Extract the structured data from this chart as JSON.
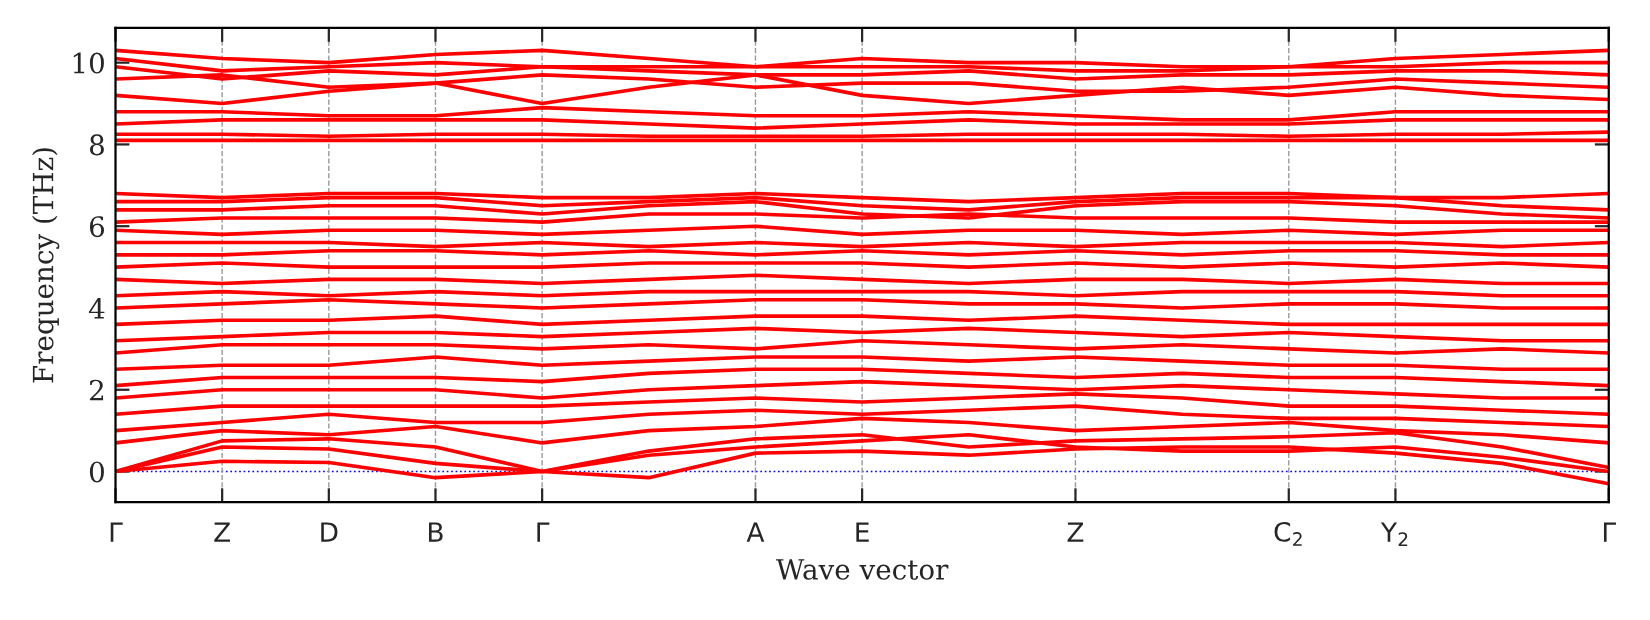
{
  "chart_data": {
    "type": "line",
    "xlabel": "Wave vector",
    "ylabel": "Frequency (THz)",
    "categories": [
      "Γ",
      "Z",
      "D",
      "B",
      "Γ",
      null,
      "A",
      "E",
      null,
      "Z",
      null,
      "C$_{2}$",
      "Y$_{2}$",
      null,
      "Γ"
    ],
    "ylim": [
      -0.75,
      10.85
    ],
    "yticks": [
      0,
      2,
      4,
      6,
      8,
      10
    ],
    "grid": "x",
    "legend": false,
    "line_style": "solid",
    "marker": "none",
    "ref_lines": [
      {
        "axis": "y",
        "value": 0,
        "color": "#0000ff",
        "line_style": "dotted"
      }
    ],
    "series": [
      {
        "color": "#ff0000",
        "values": [
          0,
          0.25,
          0.22,
          -0.15,
          0,
          -0.15,
          0.45,
          0.5,
          0.4,
          0.55,
          0.6,
          0.6,
          0.45,
          0.2,
          -0.3
        ]
      },
      {
        "color": "#ff0000",
        "values": [
          0,
          0.6,
          0.55,
          0.2,
          0,
          0.4,
          0.6,
          0.75,
          0.9,
          0.6,
          0.5,
          0.5,
          0.6,
          0.35,
          0
        ]
      },
      {
        "color": "#ff0000",
        "values": [
          0,
          0.75,
          0.8,
          0.6,
          0,
          0.5,
          0.8,
          0.9,
          0.6,
          0.75,
          0.8,
          0.85,
          0.95,
          0.6,
          0.1
        ]
      },
      {
        "color": "#ff0000",
        "values": [
          0.7,
          1.0,
          0.9,
          1.1,
          0.7,
          1.0,
          1.1,
          1.3,
          1.2,
          1.0,
          1.1,
          1.2,
          1.0,
          0.9,
          0.7
        ]
      },
      {
        "color": "#ff0000",
        "values": [
          1.0,
          1.2,
          1.4,
          1.2,
          1.2,
          1.4,
          1.5,
          1.4,
          1.5,
          1.6,
          1.4,
          1.3,
          1.3,
          1.2,
          1.1
        ]
      },
      {
        "color": "#ff0000",
        "values": [
          1.4,
          1.6,
          1.6,
          1.6,
          1.6,
          1.7,
          1.8,
          1.7,
          1.8,
          1.9,
          1.8,
          1.6,
          1.6,
          1.5,
          1.4
        ]
      },
      {
        "color": "#ff0000",
        "values": [
          1.8,
          2.0,
          2.0,
          2.0,
          1.8,
          2.0,
          2.1,
          2.2,
          2.1,
          2.0,
          2.1,
          2.0,
          1.9,
          1.8,
          1.8
        ]
      },
      {
        "color": "#ff0000",
        "values": [
          2.1,
          2.3,
          2.3,
          2.3,
          2.2,
          2.4,
          2.5,
          2.5,
          2.4,
          2.3,
          2.4,
          2.3,
          2.3,
          2.2,
          2.1
        ]
      },
      {
        "color": "#ff0000",
        "values": [
          2.5,
          2.6,
          2.6,
          2.8,
          2.6,
          2.7,
          2.8,
          2.8,
          2.7,
          2.8,
          2.7,
          2.6,
          2.6,
          2.5,
          2.5
        ]
      },
      {
        "color": "#ff0000",
        "values": [
          2.9,
          3.1,
          3.1,
          3.1,
          3.0,
          3.1,
          3.0,
          3.2,
          3.1,
          3.0,
          3.1,
          3.0,
          2.9,
          3.0,
          2.9
        ]
      },
      {
        "color": "#ff0000",
        "values": [
          3.2,
          3.3,
          3.4,
          3.4,
          3.3,
          3.4,
          3.5,
          3.4,
          3.5,
          3.4,
          3.3,
          3.4,
          3.3,
          3.2,
          3.2
        ]
      },
      {
        "color": "#ff0000",
        "values": [
          3.6,
          3.7,
          3.7,
          3.8,
          3.6,
          3.7,
          3.8,
          3.8,
          3.7,
          3.8,
          3.7,
          3.6,
          3.6,
          3.6,
          3.6
        ]
      },
      {
        "color": "#ff0000",
        "values": [
          4.0,
          4.1,
          4.2,
          4.1,
          4.0,
          4.1,
          4.2,
          4.2,
          4.1,
          4.1,
          4.0,
          4.1,
          4.1,
          4.0,
          4.0
        ]
      },
      {
        "color": "#ff0000",
        "values": [
          4.3,
          4.4,
          4.3,
          4.4,
          4.3,
          4.4,
          4.4,
          4.4,
          4.4,
          4.3,
          4.4,
          4.4,
          4.4,
          4.3,
          4.3
        ]
      },
      {
        "color": "#ff0000",
        "values": [
          4.7,
          4.6,
          4.7,
          4.7,
          4.6,
          4.7,
          4.8,
          4.7,
          4.6,
          4.7,
          4.7,
          4.6,
          4.7,
          4.6,
          4.6
        ]
      },
      {
        "color": "#ff0000",
        "values": [
          5.0,
          5.1,
          5.0,
          5.0,
          5.0,
          5.1,
          5.1,
          5.1,
          5.0,
          5.1,
          5.0,
          5.1,
          5.0,
          5.1,
          5.0
        ]
      },
      {
        "color": "#ff0000",
        "values": [
          5.3,
          5.3,
          5.4,
          5.4,
          5.3,
          5.4,
          5.3,
          5.4,
          5.3,
          5.4,
          5.3,
          5.4,
          5.4,
          5.3,
          5.3
        ]
      },
      {
        "color": "#ff0000",
        "values": [
          5.6,
          5.6,
          5.6,
          5.5,
          5.6,
          5.5,
          5.6,
          5.5,
          5.6,
          5.5,
          5.6,
          5.6,
          5.6,
          5.5,
          5.6
        ]
      },
      {
        "color": "#ff0000",
        "values": [
          5.9,
          5.8,
          5.9,
          5.9,
          5.8,
          5.9,
          6.0,
          5.8,
          5.9,
          5.9,
          5.8,
          5.9,
          5.8,
          5.9,
          5.9
        ]
      },
      {
        "color": "#ff0000",
        "values": [
          6.1,
          6.2,
          6.2,
          6.2,
          6.1,
          6.3,
          6.3,
          6.2,
          6.3,
          6.2,
          6.2,
          6.2,
          6.1,
          6.1,
          6.1
        ]
      },
      {
        "color": "#ff0000",
        "values": [
          6.4,
          6.4,
          6.5,
          6.5,
          6.3,
          6.5,
          6.6,
          6.3,
          6.2,
          6.5,
          6.6,
          6.6,
          6.5,
          6.3,
          6.2
        ]
      },
      {
        "color": "#ff0000",
        "values": [
          6.6,
          6.6,
          6.7,
          6.7,
          6.5,
          6.6,
          6.7,
          6.5,
          6.4,
          6.6,
          6.7,
          6.7,
          6.7,
          6.5,
          6.4
        ]
      },
      {
        "color": "#ff0000",
        "values": [
          6.8,
          6.7,
          6.8,
          6.8,
          6.7,
          6.7,
          6.8,
          6.7,
          6.6,
          6.7,
          6.8,
          6.8,
          6.7,
          6.7,
          6.8
        ]
      },
      {
        "color": "#ff0000",
        "values": [
          8.1,
          8.1,
          8.1,
          8.1,
          8.1,
          8.1,
          8.1,
          8.1,
          8.1,
          8.1,
          8.1,
          8.1,
          8.1,
          8.1,
          8.1
        ]
      },
      {
        "color": "#ff0000",
        "values": [
          8.25,
          8.25,
          8.2,
          8.25,
          8.25,
          8.2,
          8.2,
          8.2,
          8.25,
          8.25,
          8.25,
          8.2,
          8.25,
          8.25,
          8.3
        ]
      },
      {
        "color": "#ff0000",
        "values": [
          8.5,
          8.6,
          8.6,
          8.6,
          8.6,
          8.5,
          8.4,
          8.5,
          8.6,
          8.5,
          8.5,
          8.5,
          8.6,
          8.6,
          8.6
        ]
      },
      {
        "color": "#ff0000",
        "values": [
          8.8,
          8.8,
          8.7,
          8.7,
          8.9,
          8.8,
          8.7,
          8.7,
          8.8,
          8.7,
          8.6,
          8.6,
          8.8,
          8.8,
          8.8
        ]
      },
      {
        "color": "#ff0000",
        "values": [
          9.2,
          9.0,
          9.3,
          9.5,
          9.0,
          9.4,
          9.7,
          9.2,
          9.0,
          9.2,
          9.4,
          9.2,
          9.4,
          9.2,
          9.1
        ]
      },
      {
        "color": "#ff0000",
        "values": [
          9.6,
          9.7,
          9.4,
          9.5,
          9.7,
          9.6,
          9.4,
          9.5,
          9.5,
          9.3,
          9.3,
          9.4,
          9.6,
          9.5,
          9.4
        ]
      },
      {
        "color": "#ff0000",
        "values": [
          9.9,
          9.6,
          9.8,
          9.7,
          9.9,
          9.8,
          9.7,
          9.7,
          9.8,
          9.6,
          9.7,
          9.7,
          9.8,
          9.8,
          9.7
        ]
      },
      {
        "color": "#ff0000",
        "values": [
          10.1,
          9.8,
          9.9,
          10.0,
          9.9,
          9.9,
          9.9,
          9.9,
          9.9,
          9.8,
          9.8,
          9.9,
          9.9,
          10.0,
          10.0
        ]
      },
      {
        "color": "#ff0000",
        "values": [
          10.3,
          10.1,
          10.0,
          10.2,
          10.3,
          10.1,
          9.9,
          10.1,
          10.0,
          10.0,
          9.9,
          9.9,
          10.1,
          10.2,
          10.3
        ]
      }
    ]
  }
}
